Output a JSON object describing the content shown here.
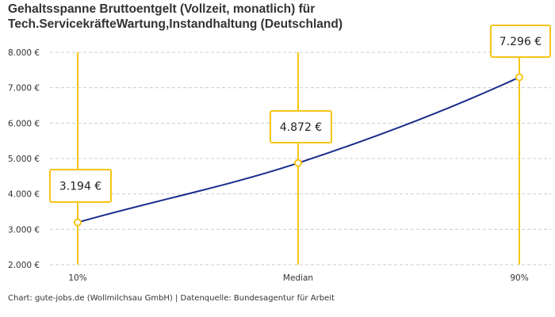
{
  "title_line1": "Gehaltsspanne Bruttoentgelt (Vollzeit, monatlich) für",
  "title_line2": "Tech.ServicekräfteWartung,Instandhaltung (Deutschland)",
  "footer": "Chart: gute-jobs.de (Wollmilchsau GmbH) | Datenquelle: Bundesagentur für Arbeit",
  "colors": {
    "line": "#1a2b8c",
    "accent": "#f5c518",
    "grid": "#cccccc"
  },
  "chart_data": {
    "type": "line",
    "title": "Gehaltsspanne Bruttoentgelt (Vollzeit, monatlich) für Tech.ServicekräfteWartung,Instandhaltung (Deutschland)",
    "categories": [
      "10%",
      "Median",
      "90%"
    ],
    "values": [
      3194,
      4872,
      7296
    ],
    "value_labels": [
      "3.194 €",
      "4.872 €",
      "7.296 €"
    ],
    "ylim": [
      2000,
      8000
    ],
    "yticks": [
      2000,
      3000,
      4000,
      5000,
      6000,
      7000,
      8000
    ],
    "ytick_labels": [
      "2.000 €",
      "3.000 €",
      "4.000 €",
      "5.000 €",
      "6.000 €",
      "7.000 €",
      "8.000 €"
    ],
    "grid": true,
    "xlabel": "",
    "ylabel": ""
  }
}
